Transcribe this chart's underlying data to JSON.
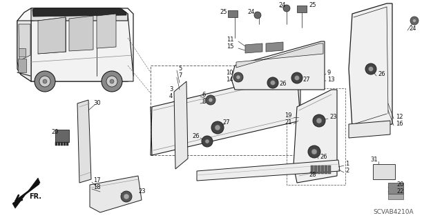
{
  "bg_color": "#ffffff",
  "line_color": "#1a1a1a",
  "diagram_code": "SCVAB4210A",
  "fig_width": 6.4,
  "fig_height": 3.19,
  "dpi": 100
}
